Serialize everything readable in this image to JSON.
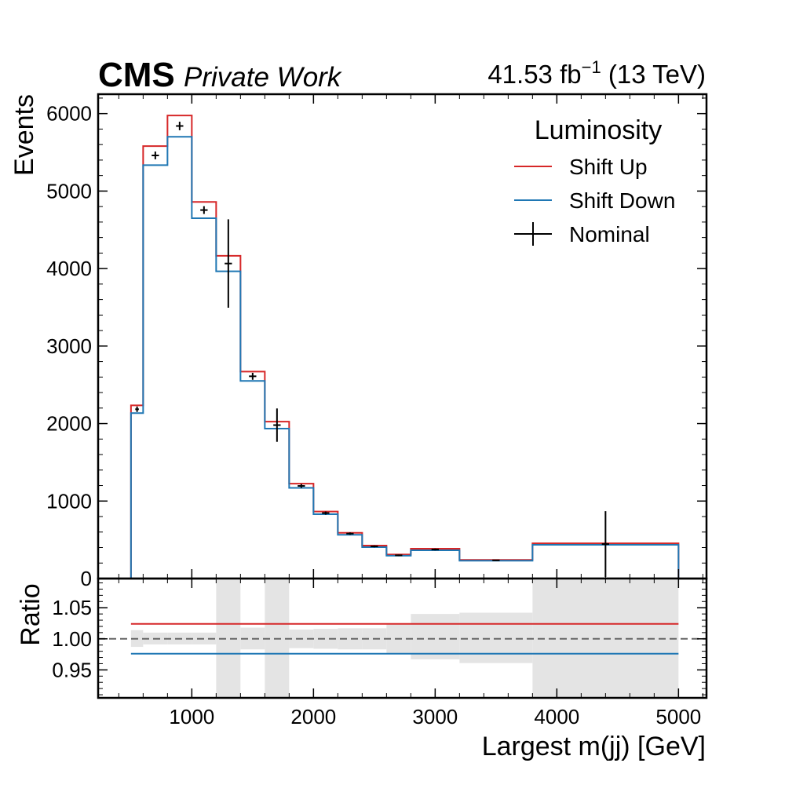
{
  "chart_data": [
    {
      "type": "histogram",
      "header": {
        "experiment": "CMS",
        "status": "Private Work",
        "lumi_value": "41.53 fb",
        "lumi_exponent": "−1",
        "energy": "(13 TeV)"
      },
      "ylabel": "Events",
      "xlabel": "Largest m(jj) [GeV]",
      "xlim": [
        230,
        5230
      ],
      "ylim": [
        0,
        6250
      ],
      "y_ticks": [
        0,
        1000,
        2000,
        3000,
        4000,
        5000,
        6000
      ],
      "y_tick_labels": [
        "0",
        "1000",
        "2000",
        "3000",
        "4000",
        "5000",
        "6000"
      ],
      "x_ticks": [
        1000,
        2000,
        3000,
        4000,
        5000
      ],
      "x_tick_labels": [
        "1000",
        "2000",
        "3000",
        "4000",
        "5000"
      ],
      "legend": {
        "title": "Luminosity",
        "placement": "top-right",
        "entries": [
          "Shift Up",
          "Shift Down",
          "Nominal"
        ]
      },
      "bin_edges": [
        500,
        600,
        800,
        1000,
        1200,
        1400,
        1600,
        1800,
        2000,
        2200,
        2400,
        2600,
        2800,
        3200,
        3800,
        5000
      ],
      "series": [
        {
          "name": "Shift Up",
          "kind": "step",
          "color": "#d62728",
          "values": [
            2235,
            5580,
            5975,
            4860,
            4165,
            2670,
            2025,
            1225,
            865,
            590,
            425,
            310,
            385,
            240,
            455
          ]
        },
        {
          "name": "Shift Down",
          "kind": "step",
          "color": "#1f77b4",
          "values": [
            2135,
            5335,
            5700,
            4650,
            3965,
            2550,
            1935,
            1170,
            830,
            565,
            405,
            295,
            365,
            230,
            435
          ]
        },
        {
          "name": "Nominal",
          "kind": "errorbar",
          "color": "#000000",
          "values": [
            2185,
            5460,
            5840,
            4755,
            4065,
            2610,
            1980,
            1195,
            845,
            580,
            415,
            300,
            375,
            235,
            445
          ],
          "errors": [
            35,
            50,
            55,
            50,
            570,
            45,
            215,
            25,
            20,
            15,
            12,
            10,
            12,
            8,
            425
          ]
        }
      ]
    },
    {
      "type": "ratio",
      "ylabel": "Ratio",
      "xlim": [
        230,
        5230
      ],
      "ylim": [
        0.905,
        1.097
      ],
      "y_ticks": [
        0.95,
        1.0,
        1.05
      ],
      "y_tick_labels": [
        "0.95",
        "1.00",
        "1.05"
      ],
      "x_ticks": [
        1000,
        2000,
        3000,
        4000,
        5000
      ],
      "x_tick_labels": [
        "1000",
        "2000",
        "3000",
        "4000",
        "5000"
      ],
      "reference_line": 1.0,
      "uncertainty_band": {
        "color": "#e4e4e4",
        "bin_edges": [
          500,
          600,
          800,
          1000,
          1200,
          1400,
          1600,
          1800,
          2000,
          2200,
          2400,
          2600,
          2800,
          3200,
          3800,
          5000
        ],
        "low": [
          0.987,
          0.991,
          0.991,
          0.991,
          0.905,
          0.983,
          0.905,
          0.985,
          0.984,
          0.983,
          0.983,
          0.977,
          0.967,
          0.961,
          0.905
        ],
        "high": [
          1.014,
          1.01,
          1.01,
          1.01,
          1.097,
          1.018,
          1.097,
          1.015,
          1.016,
          1.017,
          1.017,
          1.023,
          1.04,
          1.042,
          1.097
        ]
      },
      "series": [
        {
          "name": "Shift Up",
          "color": "#d62728",
          "x_range": [
            500,
            5000
          ],
          "value": 1.024
        },
        {
          "name": "Shift Down",
          "color": "#1f77b4",
          "x_range": [
            500,
            5000
          ],
          "value": 0.976
        }
      ]
    }
  ]
}
